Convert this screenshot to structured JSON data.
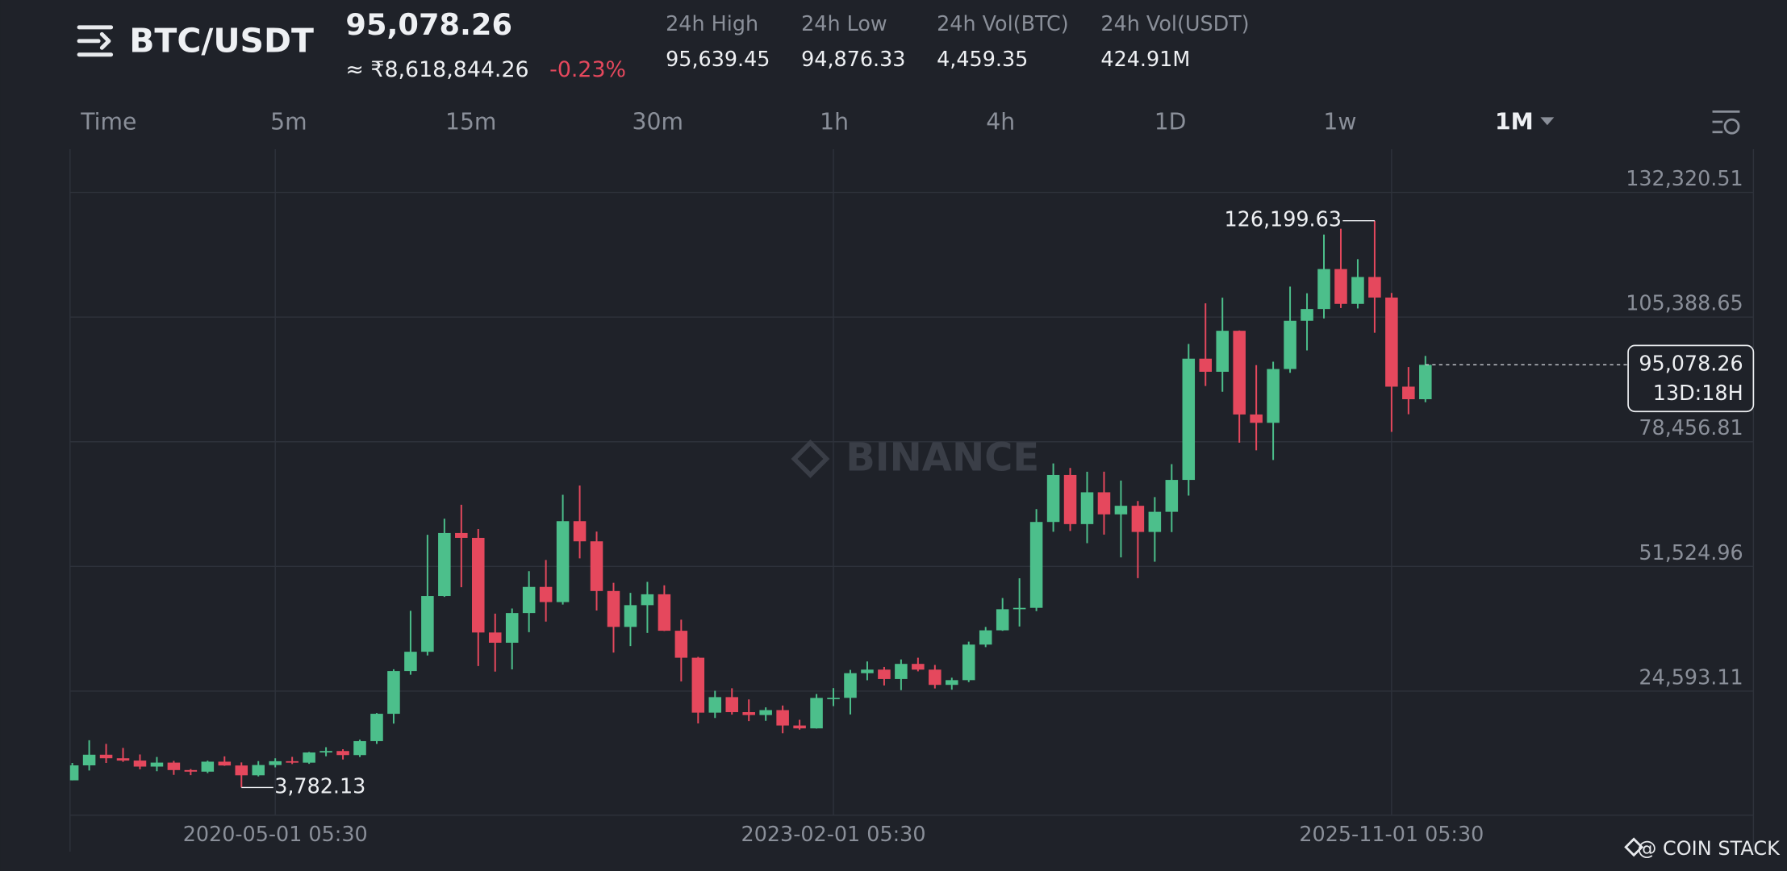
{
  "header": {
    "symbol": "BTC/USDT",
    "price": "95,078.26",
    "price_inr": "≈ ₹8,618,844.26",
    "change": "-0.23%",
    "stats": [
      {
        "label": "24h High",
        "value": "95,639.45"
      },
      {
        "label": "24h Low",
        "value": "94,876.33"
      },
      {
        "label": "24h Vol(BTC)",
        "value": "4,459.35"
      },
      {
        "label": "24h Vol(USDT)",
        "value": "424.91M"
      }
    ]
  },
  "tabs": [
    "Time",
    "5m",
    "15m",
    "30m",
    "1h",
    "4h",
    "1D",
    "1w",
    "1M"
  ],
  "active_tab": "1M",
  "watermark": "BINANCE",
  "credit": "@ COIN STACK",
  "chart_data": {
    "type": "candlestick",
    "up_color": "#4cbf8b",
    "down_color": "#e5485d",
    "grid": true,
    "x": [
      "2019-05-01",
      "2019-06-01",
      "2019-07-01",
      "2019-08-01",
      "2019-09-01",
      "2019-10-01",
      "2019-11-01",
      "2019-12-01",
      "2020-01-01",
      "2020-02-01",
      "2020-03-01",
      "2020-04-01",
      "2020-05-01",
      "2020-06-01",
      "2020-07-01",
      "2020-08-01",
      "2020-09-01",
      "2020-10-01",
      "2020-11-01",
      "2020-12-01",
      "2021-01-01",
      "2021-02-01",
      "2021-03-01",
      "2021-04-01",
      "2021-05-01",
      "2021-06-01",
      "2021-07-01",
      "2021-08-01",
      "2021-09-01",
      "2021-10-01",
      "2021-11-01",
      "2021-12-01",
      "2022-01-01",
      "2022-02-01",
      "2022-03-01",
      "2022-04-01",
      "2022-05-01",
      "2022-06-01",
      "2022-07-01",
      "2022-08-01",
      "2022-09-01",
      "2022-10-01",
      "2022-11-01",
      "2022-12-01",
      "2023-01-01",
      "2023-02-01",
      "2023-03-01",
      "2023-04-01",
      "2023-05-01",
      "2023-06-01",
      "2023-07-01",
      "2023-08-01",
      "2023-09-01",
      "2023-10-01",
      "2023-11-01",
      "2023-12-01",
      "2024-01-01",
      "2024-02-01",
      "2024-03-01",
      "2024-04-01",
      "2024-05-01",
      "2024-06-01",
      "2024-07-01",
      "2024-08-01",
      "2024-09-01",
      "2024-10-01",
      "2024-11-01",
      "2024-12-01",
      "2025-01-01",
      "2025-02-01",
      "2025-03-01",
      "2025-04-01",
      "2025-05-01",
      "2025-06-01",
      "2025-07-01",
      "2025-08-01",
      "2025-09-01",
      "2025-10-01",
      "2025-11-01",
      "2025-12-01",
      "2026-01-01"
    ],
    "open": [
      5321,
      8555,
      10855,
      10085,
      9590,
      8290,
      9150,
      7540,
      7195,
      9350,
      8525,
      6410,
      8625,
      9450,
      9138,
      11335,
      11649,
      10777,
      13791,
      19695,
      28923,
      33092,
      45135,
      58741,
      57694,
      37253,
      35045,
      41461,
      47101,
      43824,
      61300,
      56950,
      46216,
      38466,
      43160,
      45510,
      37630,
      31801,
      19942,
      23293,
      20050,
      19423,
      20490,
      17164,
      16542,
      23125,
      23141,
      28465,
      29233,
      27210,
      30472,
      29232,
      25940,
      26962,
      34640,
      37723,
      42283,
      42580,
      61130,
      71280,
      60672,
      67540,
      62772,
      64628,
      58974,
      63327,
      70215,
      96408,
      93576,
      102429,
      84350,
      82550,
      94172,
      104592,
      107135,
      115764,
      108246,
      114049,
      109608,
      90360,
      87648
    ],
    "high": [
      9074,
      13970,
      13200,
      12325,
      10905,
      10370,
      9505,
      7750,
      9578,
      10500,
      9190,
      9468,
      10070,
      10380,
      11444,
      12468,
      12050,
      14100,
      19863,
      29300,
      41950,
      58352,
      61844,
      64854,
      59592,
      41330,
      42448,
      50500,
      52920,
      67000,
      69000,
      59053,
      47990,
      45821,
      48190,
      47444,
      40023,
      31982,
      24668,
      25211,
      22799,
      21085,
      21480,
      18388,
      23960,
      25250,
      29184,
      31000,
      29820,
      31431,
      31804,
      30244,
      27488,
      35280,
      38450,
      44700,
      48969,
      63913,
      73777,
      72797,
      71979,
      71997,
      70079,
      65660,
      66498,
      73620,
      99588,
      108353,
      109588,
      102500,
      95000,
      95758,
      111980,
      110530,
      123218,
      124474,
      117900,
      126199.63,
      110600,
      94600,
      97000
    ],
    "low": [
      5316,
      7440,
      9070,
      9320,
      7710,
      7300,
      6515,
      6435,
      6871,
      8445,
      3782.13,
      6150,
      8117,
      8833,
      8893,
      10525,
      9825,
      10366,
      13195,
      17572,
      28130,
      32296,
      44950,
      47044,
      30000,
      28805,
      29278,
      37332,
      39600,
      43283,
      53256,
      42000,
      32917,
      34322,
      37155,
      37578,
      26700,
      17622,
      18782,
      19521,
      18125,
      18190,
      15476,
      16256,
      16499,
      21351,
      19549,
      26942,
      25811,
      24800,
      28861,
      25166,
      24901,
      26538,
      34097,
      37615,
      38555,
      41884,
      59005,
      59191,
      56552,
      58402,
      53485,
      49000,
      52550,
      58946,
      66835,
      90500,
      89256,
      78258,
      76606,
      74508,
      93346,
      98200,
      105100,
      107350,
      107255,
      102000,
      80600,
      84400,
      87000
    ],
    "close": [
      8555,
      10855,
      10085,
      9590,
      8290,
      9150,
      7540,
      7195,
      9350,
      8525,
      6410,
      8625,
      9450,
      9138,
      11335,
      11649,
      10777,
      13791,
      19695,
      28923,
      33092,
      45135,
      58741,
      57694,
      37253,
      35045,
      41461,
      47101,
      43824,
      61300,
      56950,
      46216,
      38466,
      43160,
      45510,
      37630,
      31801,
      19942,
      23293,
      20050,
      19423,
      20490,
      17164,
      16542,
      23125,
      23141,
      28465,
      29233,
      27210,
      30472,
      29232,
      25940,
      26962,
      34640,
      37723,
      42283,
      42580,
      61130,
      71280,
      60672,
      67540,
      62772,
      64628,
      58974,
      63327,
      70215,
      96408,
      93576,
      102429,
      84350,
      82550,
      94172,
      104592,
      107135,
      115764,
      108246,
      114049,
      109608,
      90360,
      87648,
      95078.26
    ],
    "ylim": [
      -2215,
      141666
    ],
    "yticks": [
      {
        "value": 24593.11,
        "label": "24,593.11"
      },
      {
        "value": 51524.96,
        "label": "51,524.96"
      },
      {
        "value": 78456.81,
        "label": "78,456.81"
      },
      {
        "value": 105388.65,
        "label": "105,388.65"
      },
      {
        "value": 132320.51,
        "label": "132,320.51"
      }
    ],
    "xticks": [
      {
        "value": "2020-05-01",
        "label": "2020-05-01 05:30"
      },
      {
        "value": "2023-02-01",
        "label": "2023-02-01 05:30"
      },
      {
        "value": "2025-11-01",
        "label": "2025-11-01 05:30"
      }
    ],
    "annotations": [
      {
        "value": 126199.63,
        "label": "126,199.63"
      },
      {
        "value": 3782.13,
        "label": "3,782.13"
      }
    ],
    "last_price": {
      "value": 95078.26,
      "label": "95,078.26"
    },
    "countdown": "13D:18H"
  }
}
